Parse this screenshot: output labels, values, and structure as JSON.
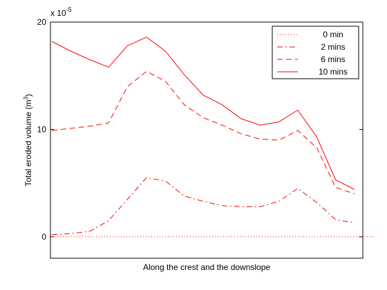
{
  "chart_data": {
    "type": "line",
    "xlabel": "Along the crest and the downslope",
    "ylabel": "Total eroded volume (m",
    "ylabel_superscript": "3",
    "ylabel_close": ")",
    "scale_base": "x 10",
    "scale_exponent": "-5",
    "xlim": [
      0,
      18
    ],
    "ylim": [
      -2,
      20
    ],
    "yticks": [
      0,
      10,
      20
    ],
    "grid": false,
    "legend_position": "top-right",
    "x": [
      0,
      1,
      2,
      3,
      4,
      5,
      6,
      7,
      8,
      9,
      10,
      11,
      12,
      13,
      14,
      15,
      16,
      17
    ],
    "series": [
      {
        "name": "0 min",
        "style": "dotted",
        "color": "#ff0000",
        "values": [
          0,
          0,
          0,
          0,
          0,
          0,
          0,
          0,
          0,
          0,
          0,
          0,
          0,
          0,
          0,
          0,
          0,
          0
        ]
      },
      {
        "name": "2 mins",
        "style": "dashdot",
        "color": "#ff0000",
        "values": [
          0.2,
          0.3,
          0.5,
          1.5,
          3.5,
          5.5,
          5.2,
          3.8,
          3.3,
          2.9,
          2.8,
          2.8,
          3.3,
          4.5,
          3.2,
          1.6,
          1.3,
          null
        ]
      },
      {
        "name": "6 mins",
        "style": "dashed",
        "color": "#ff0000",
        "values": [
          9.9,
          10.1,
          10.3,
          10.6,
          14.0,
          15.4,
          14.5,
          12.3,
          11.1,
          10.4,
          9.6,
          9.1,
          9.0,
          9.9,
          8.3,
          4.6,
          4.0,
          null
        ]
      },
      {
        "name": "10 mins",
        "style": "solid",
        "color": "#ff0000",
        "values": [
          18.2,
          17.3,
          16.5,
          15.8,
          17.8,
          18.6,
          17.3,
          15.1,
          13.2,
          12.3,
          11.0,
          10.4,
          10.7,
          11.8,
          9.3,
          5.3,
          4.4,
          null
        ]
      }
    ]
  }
}
